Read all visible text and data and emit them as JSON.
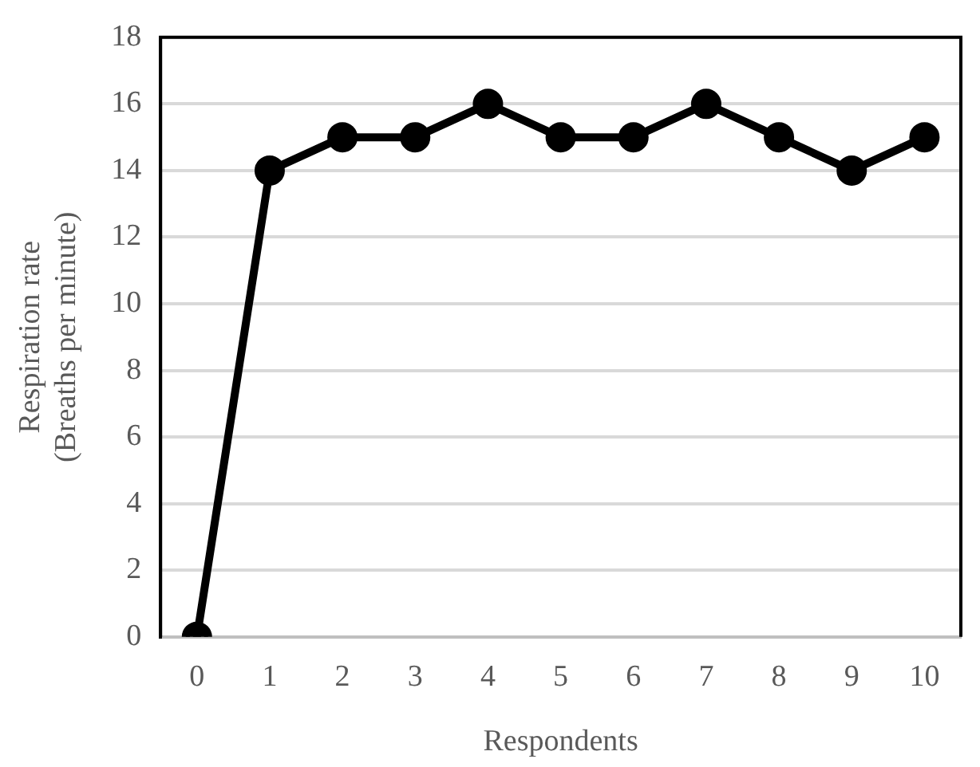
{
  "chart_data": {
    "type": "line",
    "xlabel": "Respondents",
    "ylabel": "Respiration rate\n(Breaths per minute)",
    "categories": [
      "0",
      "1",
      "2",
      "3",
      "4",
      "5",
      "6",
      "7",
      "8",
      "9",
      "10"
    ],
    "series": [
      {
        "color": "#000000",
        "values": [
          0,
          14,
          15,
          15,
          16,
          15,
          15,
          16,
          15,
          14,
          15
        ]
      }
    ],
    "ylim": [
      0,
      18
    ],
    "yticks": [
      0,
      2,
      4,
      6,
      8,
      10,
      12,
      14,
      16,
      18
    ],
    "grid": "y",
    "legend": false,
    "marker": "circle",
    "line_style": "solid"
  }
}
